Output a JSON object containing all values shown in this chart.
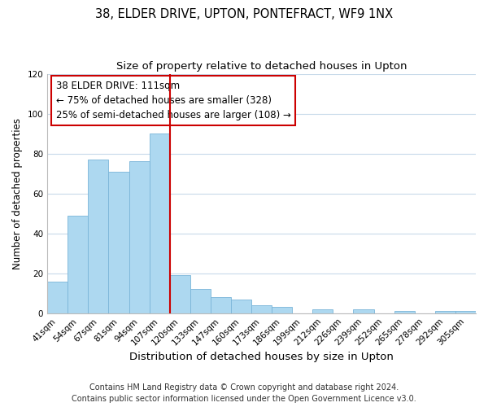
{
  "title": "38, ELDER DRIVE, UPTON, PONTEFRACT, WF9 1NX",
  "subtitle": "Size of property relative to detached houses in Upton",
  "xlabel": "Distribution of detached houses by size in Upton",
  "ylabel": "Number of detached properties",
  "bar_labels": [
    "41sqm",
    "54sqm",
    "67sqm",
    "81sqm",
    "94sqm",
    "107sqm",
    "120sqm",
    "133sqm",
    "147sqm",
    "160sqm",
    "173sqm",
    "186sqm",
    "199sqm",
    "212sqm",
    "226sqm",
    "239sqm",
    "252sqm",
    "265sqm",
    "278sqm",
    "292sqm",
    "305sqm"
  ],
  "bar_values": [
    16,
    49,
    77,
    71,
    76,
    90,
    19,
    12,
    8,
    7,
    4,
    3,
    0,
    2,
    0,
    2,
    0,
    1,
    0,
    1,
    1
  ],
  "bar_color": "#add8f0",
  "bar_edge_color": "#7ab5d8",
  "vline_color": "#cc0000",
  "vline_x_index": 6,
  "ylim": [
    0,
    120
  ],
  "yticks": [
    0,
    20,
    40,
    60,
    80,
    100,
    120
  ],
  "annotation_title": "38 ELDER DRIVE: 111sqm",
  "annotation_line1": "← 75% of detached houses are smaller (328)",
  "annotation_line2": "25% of semi-detached houses are larger (108) →",
  "footer_line1": "Contains HM Land Registry data © Crown copyright and database right 2024.",
  "footer_line2": "Contains public sector information licensed under the Open Government Licence v3.0.",
  "background_color": "#ffffff",
  "grid_color": "#c8daea",
  "title_fontsize": 10.5,
  "subtitle_fontsize": 9.5,
  "xlabel_fontsize": 9.5,
  "ylabel_fontsize": 8.5,
  "tick_fontsize": 7.5,
  "footer_fontsize": 7,
  "annotation_fontsize": 8.5
}
